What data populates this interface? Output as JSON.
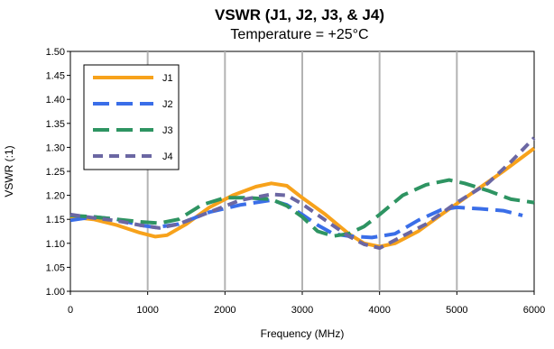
{
  "chart_data": {
    "type": "line",
    "title": "VSWR (J1, J2, J3, & J4)",
    "subtitle": "Temperature = +25°C",
    "xlabel": "Frequency (MHz)",
    "ylabel": "VSWR (:1)",
    "xlim": [
      0,
      6000
    ],
    "ylim": [
      1.0,
      1.5
    ],
    "xticks": [
      "0",
      "1000",
      "2000",
      "3000",
      "4000",
      "5000",
      "6000"
    ],
    "yticks": [
      "1.00",
      "1.05",
      "1.10",
      "1.15",
      "1.20",
      "1.25",
      "1.30",
      "1.35",
      "1.40",
      "1.45",
      "1.50"
    ],
    "grid": "vertical",
    "legend": "top-left",
    "series": [
      {
        "name": "J1",
        "color": "#f7a21b",
        "dash": "solid",
        "points": [
          [
            0,
            1.155
          ],
          [
            300,
            1.15
          ],
          [
            600,
            1.138
          ],
          [
            900,
            1.122
          ],
          [
            1100,
            1.114
          ],
          [
            1250,
            1.117
          ],
          [
            1500,
            1.14
          ],
          [
            1800,
            1.175
          ],
          [
            2100,
            1.2
          ],
          [
            2400,
            1.218
          ],
          [
            2600,
            1.225
          ],
          [
            2800,
            1.22
          ],
          [
            3000,
            1.195
          ],
          [
            3300,
            1.16
          ],
          [
            3600,
            1.12
          ],
          [
            3800,
            1.1
          ],
          [
            4000,
            1.093
          ],
          [
            4200,
            1.1
          ],
          [
            4500,
            1.125
          ],
          [
            4800,
            1.16
          ],
          [
            5200,
            1.205
          ],
          [
            5600,
            1.25
          ],
          [
            6000,
            1.298
          ]
        ]
      },
      {
        "name": "J2",
        "color": "#3a6ee8",
        "dash": "long",
        "points": [
          [
            0,
            1.148
          ],
          [
            300,
            1.155
          ],
          [
            600,
            1.15
          ],
          [
            900,
            1.138
          ],
          [
            1100,
            1.133
          ],
          [
            1400,
            1.14
          ],
          [
            1800,
            1.165
          ],
          [
            2200,
            1.18
          ],
          [
            2600,
            1.19
          ],
          [
            2800,
            1.18
          ],
          [
            3000,
            1.16
          ],
          [
            3200,
            1.138
          ],
          [
            3400,
            1.12
          ],
          [
            3600,
            1.115
          ],
          [
            3900,
            1.112
          ],
          [
            4200,
            1.12
          ],
          [
            4500,
            1.148
          ],
          [
            4800,
            1.17
          ],
          [
            5000,
            1.175
          ],
          [
            5300,
            1.172
          ],
          [
            5600,
            1.168
          ],
          [
            5850,
            1.158
          ]
        ]
      },
      {
        "name": "J3",
        "color": "#2e9462",
        "dash": "long",
        "points": [
          [
            0,
            1.158
          ],
          [
            300,
            1.155
          ],
          [
            600,
            1.15
          ],
          [
            900,
            1.145
          ],
          [
            1150,
            1.142
          ],
          [
            1400,
            1.15
          ],
          [
            1700,
            1.18
          ],
          [
            2000,
            1.195
          ],
          [
            2300,
            1.195
          ],
          [
            2600,
            1.192
          ],
          [
            2800,
            1.178
          ],
          [
            3000,
            1.155
          ],
          [
            3200,
            1.125
          ],
          [
            3400,
            1.115
          ],
          [
            3600,
            1.12
          ],
          [
            3800,
            1.135
          ],
          [
            4000,
            1.16
          ],
          [
            4300,
            1.2
          ],
          [
            4600,
            1.222
          ],
          [
            4900,
            1.232
          ],
          [
            5100,
            1.225
          ],
          [
            5400,
            1.21
          ],
          [
            5700,
            1.192
          ],
          [
            6000,
            1.185
          ]
        ]
      },
      {
        "name": "J4",
        "color": "#6b67a3",
        "dash": "medium",
        "points": [
          [
            0,
            1.16
          ],
          [
            300,
            1.153
          ],
          [
            600,
            1.147
          ],
          [
            900,
            1.138
          ],
          [
            1150,
            1.132
          ],
          [
            1400,
            1.14
          ],
          [
            1800,
            1.165
          ],
          [
            2200,
            1.19
          ],
          [
            2600,
            1.202
          ],
          [
            2800,
            1.2
          ],
          [
            3000,
            1.182
          ],
          [
            3300,
            1.148
          ],
          [
            3600,
            1.115
          ],
          [
            3800,
            1.098
          ],
          [
            4000,
            1.09
          ],
          [
            4300,
            1.115
          ],
          [
            4600,
            1.14
          ],
          [
            5000,
            1.185
          ],
          [
            5400,
            1.225
          ],
          [
            5700,
            1.27
          ],
          [
            6000,
            1.32
          ]
        ]
      }
    ]
  }
}
